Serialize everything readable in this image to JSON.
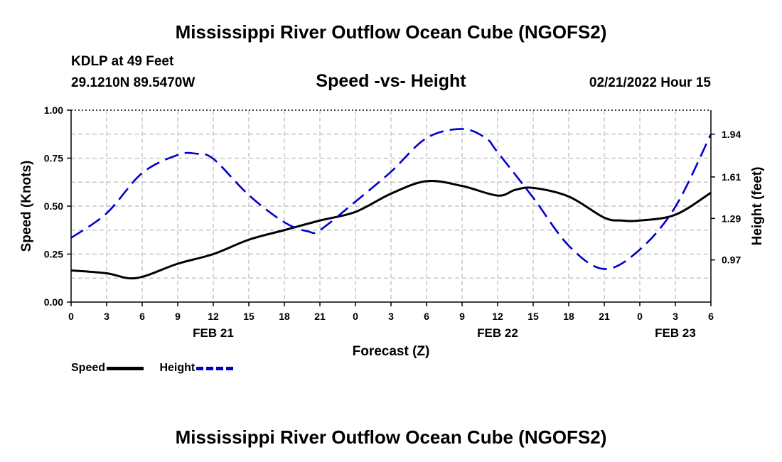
{
  "header": {
    "title": "Mississippi River Outflow Ocean Cube (NGOFS2)",
    "station": "KDLP at 49 Feet",
    "coords": "29.1210N  89.5470W",
    "timestamp": "02/21/2022 Hour 15"
  },
  "footer": {
    "title": "Mississippi River Outflow Ocean Cube (NGOFS2)"
  },
  "legend": {
    "speed_label": "Speed",
    "height_label": "Height"
  },
  "chart_data": {
    "type": "line",
    "title": "Speed -vs- Height",
    "xlabel": "Forecast (Z)",
    "ylabel": "Speed (Knots)",
    "y2label": "Height (feet)",
    "xlim": [
      0,
      54
    ],
    "ylim": [
      0,
      1.0
    ],
    "y2lim": [
      0.645,
      2.125
    ],
    "grid": true,
    "x_ticks": [
      0,
      3,
      6,
      9,
      12,
      15,
      18,
      21,
      24,
      27,
      30,
      33,
      36,
      39,
      42,
      45,
      48,
      51,
      54
    ],
    "x_tick_labels": [
      "0",
      "3",
      "6",
      "9",
      "12",
      "15",
      "18",
      "21",
      "0",
      "3",
      "6",
      "9",
      "12",
      "15",
      "18",
      "21",
      "0",
      "3",
      "6"
    ],
    "date_labels": [
      {
        "x": 12,
        "label": "FEB 21"
      },
      {
        "x": 36,
        "label": "FEB 22"
      },
      {
        "x": 51,
        "label": "FEB 23"
      }
    ],
    "y_ticks": [
      0,
      0.25,
      0.5,
      0.75,
      1.0
    ],
    "y_tick_labels": [
      "0.00",
      "0.25",
      "0.50",
      "0.75",
      "1.00"
    ],
    "y2_ticks": [
      0.97,
      1.29,
      1.61,
      1.94
    ],
    "y2_tick_labels": [
      "0.97",
      "1.29",
      "1.61",
      "1.94"
    ],
    "series": [
      {
        "name": "Speed",
        "axis": "left",
        "color": "#000000",
        "style": "solid",
        "x": [
          0,
          3,
          5.5,
          9,
          12,
          15,
          18,
          21,
          24,
          27,
          30,
          33,
          36,
          37.5,
          39,
          42,
          45,
          46.5,
          48,
          51,
          54
        ],
        "values": [
          0.165,
          0.15,
          0.125,
          0.2,
          0.25,
          0.325,
          0.375,
          0.425,
          0.47,
          0.565,
          0.63,
          0.605,
          0.555,
          0.585,
          0.595,
          0.55,
          0.44,
          0.425,
          0.425,
          0.455,
          0.57
        ]
      },
      {
        "name": "Height",
        "axis": "right",
        "color": "#0000cc",
        "style": "dashed",
        "x": [
          0,
          3,
          6,
          9,
          10.5,
          12,
          15,
          18,
          20,
          21,
          24,
          27,
          30,
          33,
          35,
          36,
          39,
          42,
          45,
          48,
          51,
          54
        ],
        "values": [
          1.14,
          1.33,
          1.64,
          1.78,
          1.79,
          1.75,
          1.47,
          1.26,
          1.19,
          1.2,
          1.42,
          1.65,
          1.91,
          1.98,
          1.91,
          1.8,
          1.45,
          1.08,
          0.9,
          1.05,
          1.38,
          1.94
        ]
      }
    ]
  }
}
